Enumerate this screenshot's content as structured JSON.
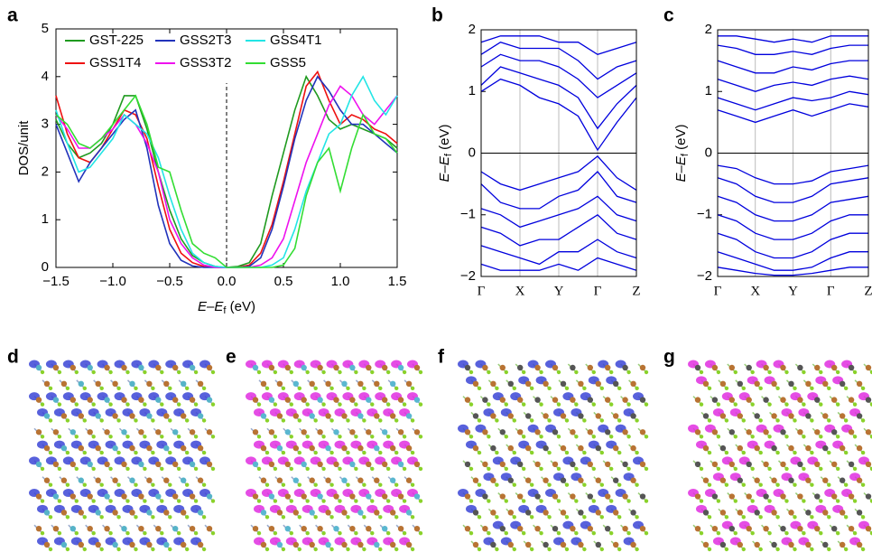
{
  "chart_data": [
    {
      "type": "line",
      "label": "a",
      "x_label": [
        "E",
        "–",
        "E",
        "f",
        " (eV)"
      ],
      "y_label": "DOS/unit",
      "x": [
        -1.5,
        -1.4,
        -1.3,
        -1.2,
        -1.1,
        -1.0,
        -0.9,
        -0.8,
        -0.7,
        -0.6,
        -0.5,
        -0.4,
        -0.3,
        -0.2,
        -0.1,
        0,
        0.1,
        0.2,
        0.3,
        0.4,
        0.5,
        0.6,
        0.7,
        0.8,
        0.9,
        1.0,
        1.1,
        1.2,
        1.3,
        1.4,
        1.5
      ],
      "xlim": [
        -1.5,
        1.5
      ],
      "xticks": [
        {
          "value": -1.5,
          "label": "−1.5"
        },
        {
          "value": -1.0,
          "label": "−1.0"
        },
        {
          "value": -0.5,
          "label": "−0.5"
        },
        {
          "value": 0,
          "label": "0.0"
        },
        {
          "value": 0.5,
          "label": "0.5"
        },
        {
          "value": 1.0,
          "label": "1.0"
        },
        {
          "value": 1.5,
          "label": "1.5"
        }
      ],
      "ylim": [
        0,
        5
      ],
      "yticks": [
        0,
        1,
        2,
        3,
        4,
        5
      ],
      "series": [
        {
          "name": "GST-225",
          "color": "#1f9a1f",
          "values": [
            3.1,
            2.6,
            2.3,
            2.4,
            2.6,
            3.0,
            3.6,
            3.6,
            2.9,
            2.0,
            1.2,
            0.6,
            0.25,
            0.1,
            0.02,
            0,
            0.02,
            0.1,
            0.5,
            1.5,
            2.4,
            3.3,
            4.0,
            3.6,
            3.1,
            2.9,
            3.0,
            2.9,
            2.8,
            2.7,
            2.5
          ]
        },
        {
          "name": "GSS1T4",
          "color": "#ee1111",
          "values": [
            3.6,
            2.8,
            2.3,
            2.2,
            2.5,
            2.9,
            3.3,
            3.2,
            2.7,
            1.7,
            0.8,
            0.3,
            0.1,
            0.02,
            0,
            0,
            0,
            0.05,
            0.3,
            0.9,
            1.8,
            2.8,
            3.8,
            4.1,
            3.5,
            3.0,
            3.2,
            3.1,
            2.9,
            2.8,
            2.6
          ]
        },
        {
          "name": "GSS2T3",
          "color": "#2233bb",
          "values": [
            3.0,
            2.4,
            1.8,
            2.2,
            2.5,
            2.8,
            3.1,
            3.3,
            2.5,
            1.3,
            0.5,
            0.15,
            0.03,
            0,
            0,
            0,
            0,
            0.02,
            0.2,
            0.8,
            1.7,
            2.7,
            3.5,
            4.0,
            3.7,
            3.3,
            3.0,
            3.0,
            2.8,
            2.6,
            2.4
          ]
        },
        {
          "name": "GSS3T2",
          "color": "#ee11ee",
          "values": [
            3.2,
            2.9,
            2.5,
            2.5,
            2.7,
            2.9,
            3.2,
            3.0,
            2.6,
            2.0,
            1.0,
            0.5,
            0.2,
            0.05,
            0,
            0,
            0,
            0,
            0.05,
            0.2,
            0.6,
            1.4,
            2.2,
            2.8,
            3.4,
            3.8,
            3.6,
            3.2,
            3.0,
            3.3,
            3.6
          ]
        },
        {
          "name": "GSS4T1",
          "color": "#22e5e5",
          "values": [
            3.3,
            2.6,
            2.0,
            2.1,
            2.4,
            2.7,
            3.2,
            3.0,
            2.8,
            2.3,
            1.5,
            0.8,
            0.3,
            0.1,
            0.02,
            0,
            0,
            0,
            0,
            0.05,
            0.2,
            0.8,
            1.6,
            2.2,
            2.8,
            3.0,
            3.6,
            4.0,
            3.5,
            3.2,
            3.6
          ]
        },
        {
          "name": "GSS5",
          "color": "#33dd33",
          "values": [
            3.2,
            3.0,
            2.6,
            2.5,
            2.7,
            3.0,
            3.3,
            3.6,
            3.0,
            2.1,
            2.0,
            1.2,
            0.5,
            0.3,
            0.2,
            0,
            0,
            0,
            0,
            0,
            0.05,
            0.4,
            1.5,
            2.2,
            2.5,
            1.6,
            2.5,
            3.2,
            2.8,
            2.7,
            2.4
          ]
        }
      ]
    },
    {
      "type": "band",
      "label": "b",
      "y_label": [
        "E",
        "–",
        "E",
        "f",
        " (eV)"
      ],
      "color": "#0000dd",
      "categories": [
        "Γ",
        null,
        "X",
        null,
        "Y",
        null,
        "Γ",
        null,
        "Z"
      ],
      "ylim": [
        -2,
        2
      ],
      "yticks": [
        {
          "value": -2,
          "label": "−2"
        },
        {
          "value": -1,
          "label": "−1"
        },
        0,
        1,
        2
      ],
      "bands": [
        [
          1.0,
          1.2,
          1.1,
          0.9,
          0.8,
          0.6,
          0.05,
          0.5,
          0.9
        ],
        [
          1.1,
          1.4,
          1.3,
          1.2,
          1.1,
          0.9,
          0.4,
          0.8,
          1.1
        ],
        [
          1.4,
          1.6,
          1.5,
          1.5,
          1.4,
          1.2,
          0.9,
          1.1,
          1.3
        ],
        [
          1.6,
          1.8,
          1.7,
          1.7,
          1.7,
          1.5,
          1.2,
          1.4,
          1.5
        ],
        [
          1.8,
          1.9,
          1.9,
          1.9,
          1.8,
          1.8,
          1.6,
          1.7,
          1.8
        ],
        [
          -0.3,
          -0.5,
          -0.6,
          -0.5,
          -0.4,
          -0.3,
          -0.05,
          -0.4,
          -0.6
        ],
        [
          -0.5,
          -0.8,
          -0.9,
          -0.9,
          -0.7,
          -0.6,
          -0.3,
          -0.7,
          -0.8
        ],
        [
          -0.9,
          -1.0,
          -1.2,
          -1.1,
          -1.0,
          -0.9,
          -0.7,
          -1.0,
          -1.1
        ],
        [
          -1.2,
          -1.3,
          -1.5,
          -1.4,
          -1.4,
          -1.2,
          -1.0,
          -1.3,
          -1.4
        ],
        [
          -1.5,
          -1.6,
          -1.7,
          -1.8,
          -1.6,
          -1.6,
          -1.4,
          -1.6,
          -1.7
        ],
        [
          -1.8,
          -1.9,
          -1.9,
          -1.9,
          -1.8,
          -1.9,
          -1.7,
          -1.8,
          -1.9
        ]
      ]
    },
    {
      "type": "band",
      "label": "c",
      "y_label": [
        "E",
        "–",
        "E",
        "f",
        " (eV)"
      ],
      "color": "#0000dd",
      "categories": [
        "Γ",
        null,
        "X",
        null,
        "Y",
        null,
        "Γ",
        null,
        "Z"
      ],
      "ylim": [
        -2,
        2
      ],
      "yticks": [
        {
          "value": -2,
          "label": "−2"
        },
        {
          "value": -1,
          "label": "−1"
        },
        0,
        1,
        2
      ],
      "bands": [
        [
          0.7,
          0.6,
          0.5,
          0.6,
          0.7,
          0.6,
          0.7,
          0.8,
          0.75
        ],
        [
          0.9,
          0.8,
          0.7,
          0.8,
          0.9,
          0.85,
          0.9,
          1.0,
          0.95
        ],
        [
          1.2,
          1.1,
          1.0,
          1.1,
          1.15,
          1.1,
          1.2,
          1.25,
          1.2
        ],
        [
          1.5,
          1.4,
          1.3,
          1.3,
          1.4,
          1.35,
          1.45,
          1.5,
          1.5
        ],
        [
          1.75,
          1.7,
          1.6,
          1.6,
          1.65,
          1.6,
          1.7,
          1.75,
          1.75
        ],
        [
          1.9,
          1.9,
          1.85,
          1.8,
          1.85,
          1.8,
          1.9,
          1.9,
          1.9
        ],
        [
          -0.2,
          -0.25,
          -0.4,
          -0.5,
          -0.5,
          -0.45,
          -0.3,
          -0.25,
          -0.2
        ],
        [
          -0.4,
          -0.5,
          -0.7,
          -0.8,
          -0.8,
          -0.7,
          -0.5,
          -0.45,
          -0.4
        ],
        [
          -0.7,
          -0.8,
          -1.0,
          -1.1,
          -1.1,
          -1.0,
          -0.8,
          -0.75,
          -0.7
        ],
        [
          -1.0,
          -1.1,
          -1.3,
          -1.4,
          -1.4,
          -1.3,
          -1.1,
          -1.0,
          -1.0
        ],
        [
          -1.3,
          -1.4,
          -1.6,
          -1.7,
          -1.7,
          -1.6,
          -1.4,
          -1.3,
          -1.3
        ],
        [
          -1.6,
          -1.7,
          -1.8,
          -1.9,
          -1.9,
          -1.85,
          -1.7,
          -1.6,
          -1.6
        ],
        [
          -1.85,
          -1.9,
          -1.95,
          -1.98,
          -1.98,
          -1.95,
          -1.9,
          -1.85,
          -1.85
        ]
      ]
    }
  ],
  "images": [
    {
      "label": "d"
    },
    {
      "label": "e"
    },
    {
      "label": "f"
    },
    {
      "label": "g"
    }
  ]
}
